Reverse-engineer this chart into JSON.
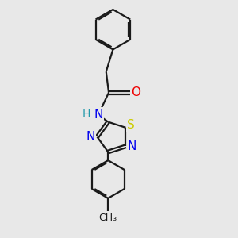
{
  "background_color": "#e8e8e8",
  "bond_color": "#1a1a1a",
  "bond_width": 1.6,
  "atom_colors": {
    "N": "#0000ee",
    "S": "#cccc00",
    "O": "#ee0000",
    "H": "#2299aa",
    "C": "#1a1a1a"
  },
  "font_size": 10,
  "fig_size": [
    3.0,
    3.0
  ],
  "dpi": 100
}
